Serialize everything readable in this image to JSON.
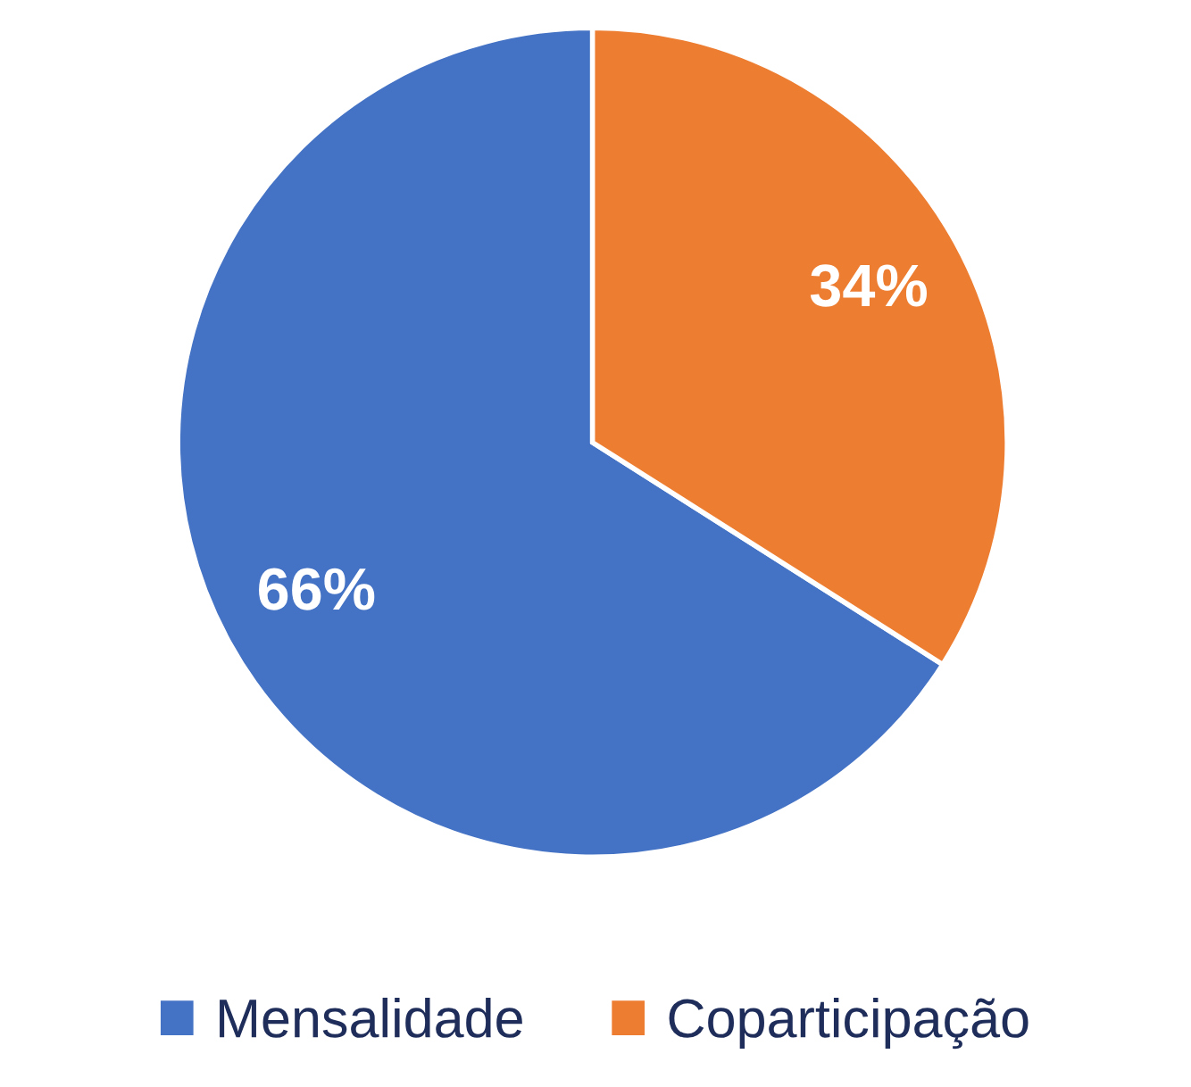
{
  "chart_data": {
    "type": "pie",
    "categories": [
      "Mensalidade",
      "Coparticipação"
    ],
    "values": [
      66,
      34
    ],
    "colors": [
      "#4472c4",
      "#ed7d31"
    ],
    "value_labels": [
      "66%",
      "34%"
    ],
    "legend": "bottom"
  }
}
